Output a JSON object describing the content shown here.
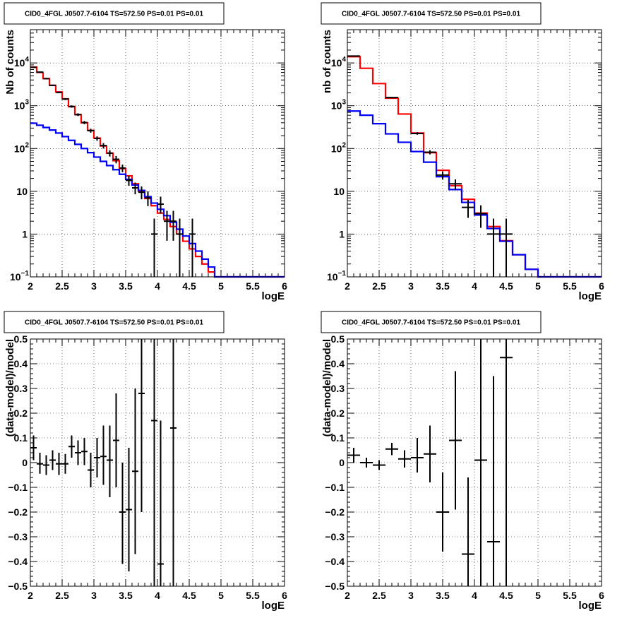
{
  "chart_data": [
    {
      "type": "step",
      "panel": "top-left",
      "title": "CID0_4FGL J0507.7-6104 TS=572.50 PS=0.01 PS=0.01",
      "xlabel": "logE",
      "ylabel": "Nb of counts",
      "xlim": [
        2,
        6
      ],
      "ylim": [
        0.1,
        60000
      ],
      "yscale": "log",
      "grid": true,
      "x_ticks": [
        "2",
        "2.5",
        "3",
        "3.5",
        "4",
        "4.5",
        "5",
        "5.5",
        "6"
      ],
      "y_ticks": [
        {
          "value": 0.1,
          "label": "10",
          "exp": "−1"
        },
        {
          "value": 1,
          "label": "1",
          "exp": ""
        },
        {
          "value": 10,
          "label": "10",
          "exp": ""
        },
        {
          "value": 100,
          "label": "10",
          "exp": "2"
        },
        {
          "value": 1000,
          "label": "10",
          "exp": "3"
        },
        {
          "value": 10000,
          "label": "10",
          "exp": "4"
        }
      ],
      "bin_edges": [
        2.0,
        2.1,
        2.2,
        2.3,
        2.4,
        2.5,
        2.6,
        2.7,
        2.8,
        2.9,
        3.0,
        3.1,
        3.2,
        3.3,
        3.4,
        3.5,
        3.6,
        3.7,
        3.8,
        3.9,
        4.0,
        4.1,
        4.2,
        4.3,
        4.4,
        4.5,
        4.6,
        4.7,
        4.8,
        4.9,
        5.0,
        5.1,
        5.2,
        5.3,
        5.4,
        5.5,
        5.6,
        5.7,
        5.8,
        5.9,
        6.0
      ],
      "series": [
        {
          "color": "#ff0000",
          "values": [
            8000,
            6000,
            4300,
            3000,
            2100,
            1450,
            950,
            620,
            400,
            265,
            175,
            115,
            78,
            52,
            34,
            23,
            15,
            10,
            6.8,
            4.6,
            3.1,
            2.2,
            1.5,
            1.0,
            0.68,
            0.45,
            0.3,
            0.2,
            0.13,
            0.1,
            0.1,
            0.1,
            0.1,
            0.1,
            0.1,
            0.1,
            0.1,
            0.1,
            0.1,
            0.1
          ]
        },
        {
          "color": "#0000ff",
          "values": [
            390,
            350,
            310,
            270,
            230,
            190,
            155,
            125,
            100,
            80,
            63,
            50,
            40,
            32,
            25,
            19,
            14,
            10.5,
            7.5,
            5.3,
            3.8,
            2.7,
            1.9,
            1.3,
            0.9,
            0.6,
            0.4,
            0.26,
            0.17,
            0.1,
            0.1,
            0.1,
            0.1,
            0.1,
            0.1,
            0.1,
            0.1,
            0.1,
            0.1,
            0.1
          ]
        }
      ],
      "points": [
        {
          "x": 2.05,
          "y": 7900,
          "lo": 7700,
          "hi": 8100
        },
        {
          "x": 2.15,
          "y": 6100,
          "lo": 5900,
          "hi": 6300
        },
        {
          "x": 2.25,
          "y": 4300,
          "lo": 4150,
          "hi": 4450
        },
        {
          "x": 2.35,
          "y": 3000,
          "lo": 2900,
          "hi": 3100
        },
        {
          "x": 2.45,
          "y": 2050,
          "lo": 1960,
          "hi": 2140
        },
        {
          "x": 2.55,
          "y": 1430,
          "lo": 1360,
          "hi": 1500
        },
        {
          "x": 2.65,
          "y": 960,
          "lo": 900,
          "hi": 1020
        },
        {
          "x": 2.75,
          "y": 620,
          "lo": 575,
          "hi": 665
        },
        {
          "x": 2.85,
          "y": 405,
          "lo": 370,
          "hi": 440
        },
        {
          "x": 2.95,
          "y": 262,
          "lo": 235,
          "hi": 290
        },
        {
          "x": 3.05,
          "y": 172,
          "lo": 152,
          "hi": 192
        },
        {
          "x": 3.15,
          "y": 117,
          "lo": 100,
          "hi": 134
        },
        {
          "x": 3.25,
          "y": 78,
          "lo": 65,
          "hi": 91
        },
        {
          "x": 3.35,
          "y": 56,
          "lo": 45,
          "hi": 67
        },
        {
          "x": 3.45,
          "y": 35,
          "lo": 28,
          "hi": 42
        },
        {
          "x": 3.55,
          "y": 18,
          "lo": 13.5,
          "hi": 23
        },
        {
          "x": 3.65,
          "y": 12,
          "lo": 8.5,
          "hi": 16
        },
        {
          "x": 3.75,
          "y": 9.5,
          "lo": 6.5,
          "hi": 13
        },
        {
          "x": 3.85,
          "y": 7,
          "lo": 4.5,
          "hi": 10
        },
        {
          "x": 3.95,
          "y": 1,
          "lo": 0.1,
          "hi": 2.3
        },
        {
          "x": 4.05,
          "y": 5,
          "lo": 3,
          "hi": 7.5
        },
        {
          "x": 4.15,
          "y": 2,
          "lo": 0.7,
          "hi": 3.5
        },
        {
          "x": 4.25,
          "y": 2,
          "lo": 0.7,
          "hi": 3.5
        },
        {
          "x": 4.35,
          "y": 1,
          "lo": 0.1,
          "hi": 2.3
        },
        {
          "x": 4.55,
          "y": 1,
          "lo": 0.1,
          "hi": 2.3
        }
      ]
    },
    {
      "type": "step",
      "panel": "top-right",
      "title": "CID0_4FGL J0507.7-6104 TS=572.50 PS=0.01 PS=0.01",
      "xlabel": "logE",
      "ylabel": "nb of counts",
      "xlim": [
        2,
        6
      ],
      "ylim": [
        0.1,
        60000
      ],
      "yscale": "log",
      "grid": true,
      "x_ticks": [
        "2",
        "2.5",
        "3",
        "3.5",
        "4",
        "4.5",
        "5",
        "5.5",
        "6"
      ],
      "y_ticks": [
        {
          "value": 0.1,
          "label": "10",
          "exp": "−1"
        },
        {
          "value": 1,
          "label": "1",
          "exp": ""
        },
        {
          "value": 10,
          "label": "10",
          "exp": ""
        },
        {
          "value": 100,
          "label": "10",
          "exp": "2"
        },
        {
          "value": 1000,
          "label": "10",
          "exp": "3"
        },
        {
          "value": 10000,
          "label": "10",
          "exp": "4"
        }
      ],
      "bin_edges": [
        2.0,
        2.2,
        2.4,
        2.6,
        2.8,
        3.0,
        3.2,
        3.4,
        3.6,
        3.8,
        4.0,
        4.2,
        4.4,
        4.6,
        4.8,
        5.0,
        5.2,
        5.4,
        5.6,
        5.8,
        6.0
      ],
      "series": [
        {
          "color": "#ff0000",
          "values": [
            14000,
            7500,
            3300,
            1500,
            640,
            230,
            80,
            31,
            13.5,
            6.5,
            3.1,
            1.5,
            0.7,
            0.33,
            0.15,
            0.1,
            0.1,
            0.1,
            0.1,
            0.1
          ]
        },
        {
          "color": "#0000ff",
          "values": [
            750,
            600,
            380,
            220,
            140,
            85,
            48,
            22,
            11,
            5.5,
            2.8,
            1.35,
            0.68,
            0.33,
            0.15,
            0.1,
            0.1,
            0.1,
            0.1,
            0.1
          ]
        }
      ],
      "points": [
        {
          "x": 2.1,
          "y": 14500,
          "lo": 14300,
          "hi": 14700
        },
        {
          "x": 2.7,
          "y": 1550,
          "lo": 1500,
          "hi": 1600
        },
        {
          "x": 3.1,
          "y": 225,
          "lo": 210,
          "hi": 240
        },
        {
          "x": 3.3,
          "y": 82,
          "lo": 73,
          "hi": 91
        },
        {
          "x": 3.5,
          "y": 24,
          "lo": 19,
          "hi": 29
        },
        {
          "x": 3.7,
          "y": 15,
          "lo": 11,
          "hi": 19
        },
        {
          "x": 3.9,
          "y": 4.2,
          "lo": 2.4,
          "hi": 6.3
        },
        {
          "x": 4.1,
          "y": 3,
          "lo": 1.4,
          "hi": 4.7
        },
        {
          "x": 4.3,
          "y": 1,
          "lo": 0.1,
          "hi": 2.3
        },
        {
          "x": 4.5,
          "y": 1,
          "lo": 0.1,
          "hi": 2.3
        }
      ]
    },
    {
      "type": "scatter",
      "panel": "bottom-left",
      "title": "CID0_4FGL J0507.7-6104 TS=572.50 PS=0.01 PS=0.01",
      "xlabel": "logE",
      "ylabel": "(data-model)/model",
      "xlim": [
        2,
        6
      ],
      "ylim": [
        -0.5,
        0.5
      ],
      "grid": true,
      "x_ticks": [
        "2",
        "2.5",
        "3",
        "3.5",
        "4",
        "4.5",
        "5",
        "5.5",
        "6"
      ],
      "y_ticks": [
        "−0.5",
        "−0.4",
        "−0.3",
        "−0.2",
        "−0.1",
        "0",
        "0.1",
        "0.2",
        "0.3",
        "0.4",
        "0.5"
      ],
      "points": [
        {
          "x": 2.05,
          "y": 0.06,
          "lo": 0.01,
          "hi": 0.11
        },
        {
          "x": 2.15,
          "y": -0.005,
          "lo": -0.045,
          "hi": 0.04
        },
        {
          "x": 2.25,
          "y": -0.01,
          "lo": -0.05,
          "hi": 0.03
        },
        {
          "x": 2.35,
          "y": 0.01,
          "lo": -0.03,
          "hi": 0.05
        },
        {
          "x": 2.45,
          "y": -0.005,
          "lo": -0.05,
          "hi": 0.04
        },
        {
          "x": 2.55,
          "y": -0.005,
          "lo": -0.045,
          "hi": 0.035
        },
        {
          "x": 2.65,
          "y": 0.065,
          "lo": 0.02,
          "hi": 0.11
        },
        {
          "x": 2.75,
          "y": 0.04,
          "lo": -0.01,
          "hi": 0.09
        },
        {
          "x": 2.85,
          "y": 0.045,
          "lo": -0.01,
          "hi": 0.1
        },
        {
          "x": 2.95,
          "y": -0.03,
          "lo": -0.1,
          "hi": 0.04
        },
        {
          "x": 3.05,
          "y": 0.02,
          "lo": -0.06,
          "hi": 0.1
        },
        {
          "x": 3.15,
          "y": 0.025,
          "lo": -0.09,
          "hi": 0.15
        },
        {
          "x": 3.25,
          "y": 0.01,
          "lo": -0.14,
          "hi": 0.15
        },
        {
          "x": 3.35,
          "y": 0.09,
          "lo": -0.1,
          "hi": 0.28
        },
        {
          "x": 3.45,
          "y": -0.2,
          "lo": -0.41,
          "hi": 0.0
        },
        {
          "x": 3.55,
          "y": -0.19,
          "lo": -0.44,
          "hi": 0.06
        },
        {
          "x": 3.65,
          "y": -0.035,
          "lo": -0.37,
          "hi": 0.3
        },
        {
          "x": 3.75,
          "y": 0.28,
          "lo": -0.2,
          "hi": 0.5
        },
        {
          "x": 3.95,
          "y": 0.17,
          "lo": -0.5,
          "hi": 0.5
        },
        {
          "x": 4.05,
          "y": -0.41,
          "lo": -0.5,
          "hi": 0.17
        },
        {
          "x": 4.25,
          "y": 0.14,
          "lo": -0.5,
          "hi": 0.5
        }
      ]
    },
    {
      "type": "scatter",
      "panel": "bottom-right",
      "title": "CID0_4FGL J0507.7-6104 TS=572.50 PS=0.01 PS=0.01",
      "xlabel": "logE",
      "ylabel": "(data-model)/model",
      "xlim": [
        2,
        6
      ],
      "ylim": [
        -0.5,
        0.5
      ],
      "grid": true,
      "x_ticks": [
        "2",
        "2.5",
        "3",
        "3.5",
        "4",
        "4.5",
        "5",
        "5.5",
        "6"
      ],
      "y_ticks": [
        "−0.5",
        "−0.4",
        "−0.3",
        "−0.2",
        "−0.1",
        "0",
        "0.1",
        "0.2",
        "0.3",
        "0.4",
        "0.5"
      ],
      "points": [
        {
          "x": 2.1,
          "y": 0.03,
          "lo": 0.0,
          "hi": 0.06
        },
        {
          "x": 2.3,
          "y": 0.0,
          "lo": -0.02,
          "hi": 0.02
        },
        {
          "x": 2.5,
          "y": -0.01,
          "lo": -0.03,
          "hi": 0.01
        },
        {
          "x": 2.7,
          "y": 0.055,
          "lo": 0.03,
          "hi": 0.08
        },
        {
          "x": 2.9,
          "y": 0.015,
          "lo": -0.02,
          "hi": 0.05
        },
        {
          "x": 3.1,
          "y": 0.02,
          "lo": -0.04,
          "hi": 0.1
        },
        {
          "x": 3.3,
          "y": 0.035,
          "lo": -0.08,
          "hi": 0.15
        },
        {
          "x": 3.5,
          "y": -0.2,
          "lo": -0.36,
          "hi": -0.04
        },
        {
          "x": 3.7,
          "y": 0.09,
          "lo": -0.19,
          "hi": 0.37
        },
        {
          "x": 3.9,
          "y": -0.37,
          "lo": -0.5,
          "hi": -0.06
        },
        {
          "x": 4.1,
          "y": 0.01,
          "lo": -0.5,
          "hi": 0.5
        },
        {
          "x": 4.3,
          "y": -0.32,
          "lo": -0.5,
          "hi": 0.35
        },
        {
          "x": 4.5,
          "y": 0.425,
          "lo": -0.5,
          "hi": 0.5
        }
      ]
    }
  ]
}
